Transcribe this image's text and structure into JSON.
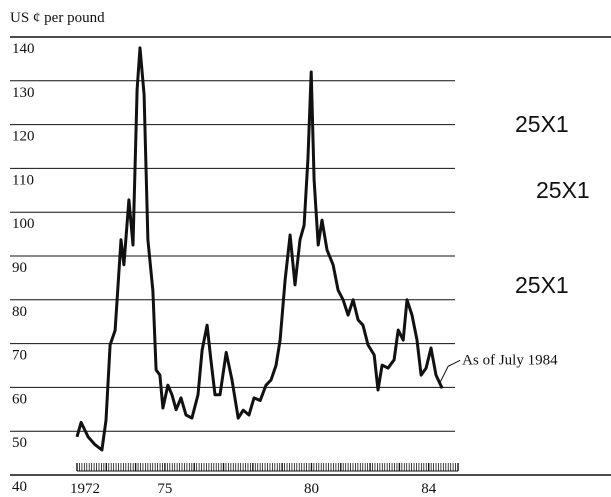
{
  "chart_data": {
    "type": "line",
    "y_label": "US ¢ per pound",
    "annotation": "As of July 1984",
    "stamps": [
      "25X1",
      "25X1",
      "25X1"
    ],
    "x": [
      1972.0,
      1972.14,
      1972.38,
      1972.6,
      1972.85,
      1972.99,
      1973.13,
      1973.3,
      1973.5,
      1973.6,
      1973.77,
      1973.91,
      1974.05,
      1974.15,
      1974.29,
      1974.42,
      1974.59,
      1974.7,
      1974.83,
      1974.93,
      1975.1,
      1975.24,
      1975.38,
      1975.55,
      1975.72,
      1975.92,
      1976.13,
      1976.27,
      1976.44,
      1976.57,
      1976.71,
      1976.88,
      1977.09,
      1977.29,
      1977.5,
      1977.67,
      1977.87,
      1978.04,
      1978.25,
      1978.45,
      1978.62,
      1978.79,
      1978.93,
      1979.1,
      1979.27,
      1979.44,
      1979.61,
      1979.75,
      1979.88,
      1979.99,
      1980.09,
      1980.23,
      1980.36,
      1980.53,
      1980.74,
      1980.91,
      1981.08,
      1981.25,
      1981.42,
      1981.59,
      1981.76,
      1981.93,
      1982.14,
      1982.27,
      1982.41,
      1982.61,
      1982.82,
      1982.96,
      1983.13,
      1983.26,
      1983.43,
      1983.6,
      1983.74,
      1983.91,
      1984.08,
      1984.25,
      1984.46
    ],
    "values": [
      48.7,
      52,
      48.7,
      47,
      45.7,
      52.5,
      69.7,
      73,
      93.7,
      88,
      102.8,
      92.5,
      128,
      137.5,
      126.8,
      93.7,
      82,
      64,
      62.8,
      55.3,
      60.5,
      58.3,
      54.9,
      57.6,
      53.7,
      53,
      58.3,
      68.5,
      74.2,
      66.3,
      58.3,
      58.3,
      68,
      61.7,
      53,
      54.8,
      53.7,
      57.6,
      57,
      60.5,
      61.7,
      65,
      70.8,
      84.5,
      94.8,
      83.4,
      93.7,
      97,
      112,
      132,
      107.4,
      92.5,
      98.2,
      91.4,
      88,
      82.2,
      80,
      76.5,
      80,
      75.4,
      74.2,
      69.7,
      67.4,
      59.4,
      65.1,
      64.4,
      66.3,
      73.1,
      70.8,
      80,
      76.5,
      70.8,
      62.8,
      64.4,
      69,
      62.8,
      59.8
    ],
    "color": "#111111",
    "xlim": [
      1972,
      1985
    ],
    "xticks": [
      1972,
      {
        "value": 1975,
        "label": "75"
      },
      {
        "value": 1980,
        "label": "80"
      },
      {
        "value": 1984,
        "label": "84"
      }
    ],
    "ylim": [
      40,
      140
    ],
    "yticks": [
      40,
      50,
      60,
      70,
      80,
      90,
      100,
      110,
      120,
      130,
      140
    ],
    "grid": true
  }
}
